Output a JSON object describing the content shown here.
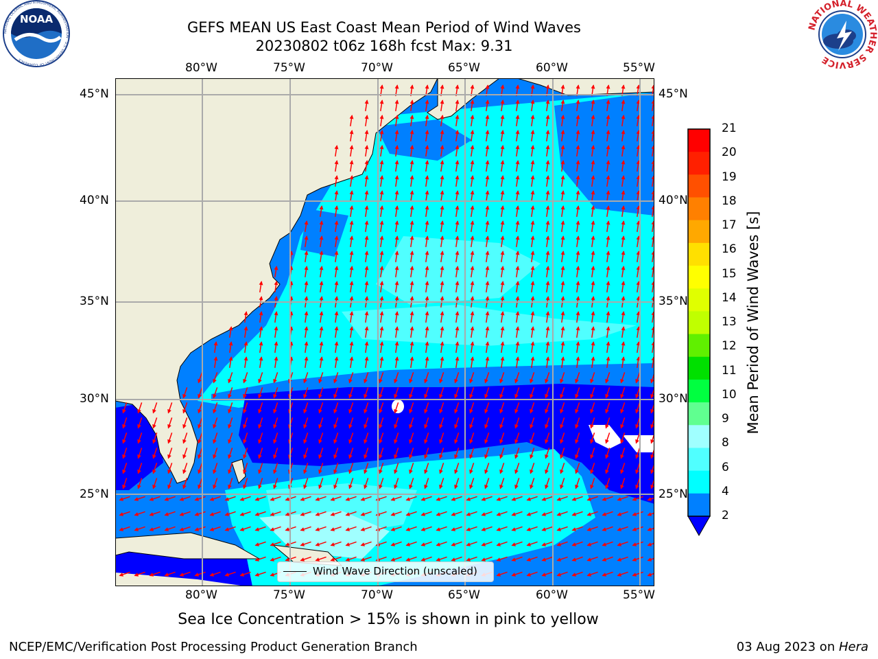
{
  "title": {
    "line1": "GEFS MEAN US East Coast Mean Period of Wind Waves",
    "line2": "20230802 t06z 168h fcst   Max: 9.31"
  },
  "map": {
    "lon_ticks": [
      "80°W",
      "75°W",
      "70°W",
      "65°W",
      "60°W",
      "55°W"
    ],
    "lat_ticks": [
      "45°N",
      "40°N",
      "35°N",
      "30°N",
      "25°N"
    ],
    "colors": {
      "land": "#efeedb",
      "coast": "#000000",
      "grid": "#aaaaaa",
      "arrow": "#ff0000"
    }
  },
  "legend": {
    "label": "Wind Wave Direction (unscaled)"
  },
  "colorbar": {
    "label": "Mean Period of Wind Waves [s]",
    "ticks": [
      "21",
      "20",
      "19",
      "18",
      "17",
      "16",
      "15",
      "14",
      "13",
      "12",
      "11",
      "10",
      "9",
      "8",
      "6",
      "4",
      "2"
    ],
    "colors": [
      "#ff0000",
      "#ff2000",
      "#ff5000",
      "#ff8000",
      "#ffa800",
      "#ffe000",
      "#ffff00",
      "#e0ff00",
      "#c0ff00",
      "#60f000",
      "#00e000",
      "#00ff40",
      "#60ff90",
      "#a0ffff",
      "#50ffff",
      "#00ffff",
      "#0080ff"
    ],
    "under_color": "#0000ff"
  },
  "logos": {
    "noaa_text": "NOAA",
    "noaa_ring": "NATIONAL OCEANIC AND ATMOSPHERIC ADMINISTRATION · U.S. DEPARTMENT OF COMMERCE",
    "nws_ring": "NATIONAL WEATHER SERVICE"
  },
  "ice_note": "Sea Ice Concentration > 15% is shown in pink to yellow",
  "footer": {
    "left": "NCEP/EMC/Verification Post Processing Product Generation Branch",
    "right_prefix": "03 Aug 2023 on ",
    "right_host": "Hera"
  }
}
